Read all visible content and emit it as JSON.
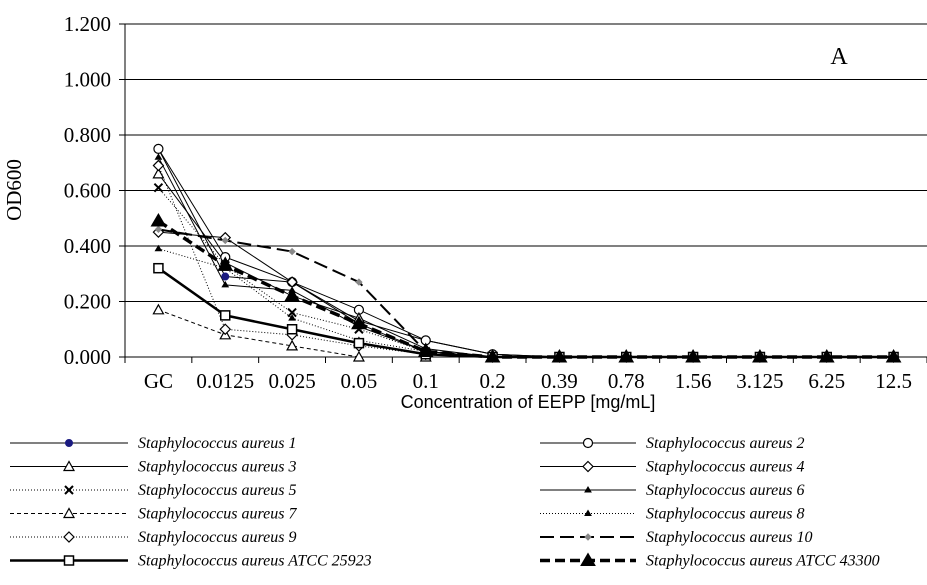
{
  "chart_data": {
    "type": "line",
    "panel_label": "A",
    "xlabel": "Concentration of EEPP [mg/mL]",
    "ylabel": "OD600",
    "ylim": [
      0,
      1.2
    ],
    "y_ticks": [
      "0.000",
      "0.200",
      "0.400",
      "0.600",
      "0.800",
      "1.000",
      "1.200"
    ],
    "grid": "horizontal",
    "legend_position": "bottom",
    "categories": [
      "GC",
      "0.0125",
      "0.025",
      "0.05",
      "0.1",
      "0.2",
      "0.39",
      "0.78",
      "1.56",
      "3.125",
      "6.25",
      "12.5"
    ],
    "series": [
      {
        "name": "Staphylococcus aureus 1",
        "values": [
          0.75,
          0.29,
          0.27,
          0.13,
          0.06,
          0.01,
          0,
          0,
          0,
          0,
          0,
          0
        ]
      },
      {
        "name": "Staphylococcus aureus 2",
        "values": [
          0.75,
          0.36,
          0.27,
          0.17,
          0.06,
          0.01,
          0,
          0,
          0,
          0,
          0,
          0
        ]
      },
      {
        "name": "Staphylococcus aureus 3",
        "values": [
          0.66,
          0.34,
          0.22,
          0.14,
          0.03,
          0.0,
          0,
          0,
          0,
          0,
          0,
          0
        ]
      },
      {
        "name": "Staphylococcus aureus 4",
        "values": [
          0.45,
          0.43,
          0.27,
          0.12,
          0.02,
          0.0,
          0,
          0,
          0,
          0,
          0,
          0
        ]
      },
      {
        "name": "Staphylococcus aureus 5",
        "values": [
          0.61,
          0.33,
          0.16,
          0.1,
          0.02,
          0.0,
          0,
          0,
          0,
          0,
          0,
          0
        ]
      },
      {
        "name": "Staphylococcus aureus 6",
        "values": [
          0.72,
          0.26,
          0.24,
          0.11,
          0.02,
          0.0,
          0,
          0,
          0,
          0,
          0,
          0
        ]
      },
      {
        "name": "Staphylococcus aureus 7",
        "values": [
          0.17,
          0.08,
          0.04,
          0.0,
          0.0,
          0.0,
          0,
          0,
          0,
          0,
          0,
          0
        ]
      },
      {
        "name": "Staphylococcus aureus 8",
        "values": [
          0.39,
          0.32,
          0.14,
          0.06,
          0.02,
          0.0,
          0,
          0,
          0,
          0,
          0,
          0
        ]
      },
      {
        "name": "Staphylococcus aureus 9",
        "values": [
          0.69,
          0.1,
          0.08,
          0.04,
          0.01,
          0.0,
          0,
          0,
          0,
          0,
          0,
          0
        ]
      },
      {
        "name": "Staphylococcus aureus 10",
        "values": [
          0.46,
          0.42,
          0.38,
          0.27,
          0.02,
          0.0,
          0,
          0,
          0,
          0,
          0,
          0
        ]
      },
      {
        "name": "Staphylococcus aureus ATCC 25923",
        "values": [
          0.32,
          0.15,
          0.1,
          0.05,
          0.01,
          0.0,
          0,
          0,
          0,
          0,
          0,
          0
        ]
      },
      {
        "name": "Staphylococcus aureus ATCC 43300",
        "values": [
          0.49,
          0.33,
          0.22,
          0.12,
          0.02,
          0.0,
          0,
          0,
          0,
          0,
          0,
          0
        ]
      }
    ]
  }
}
